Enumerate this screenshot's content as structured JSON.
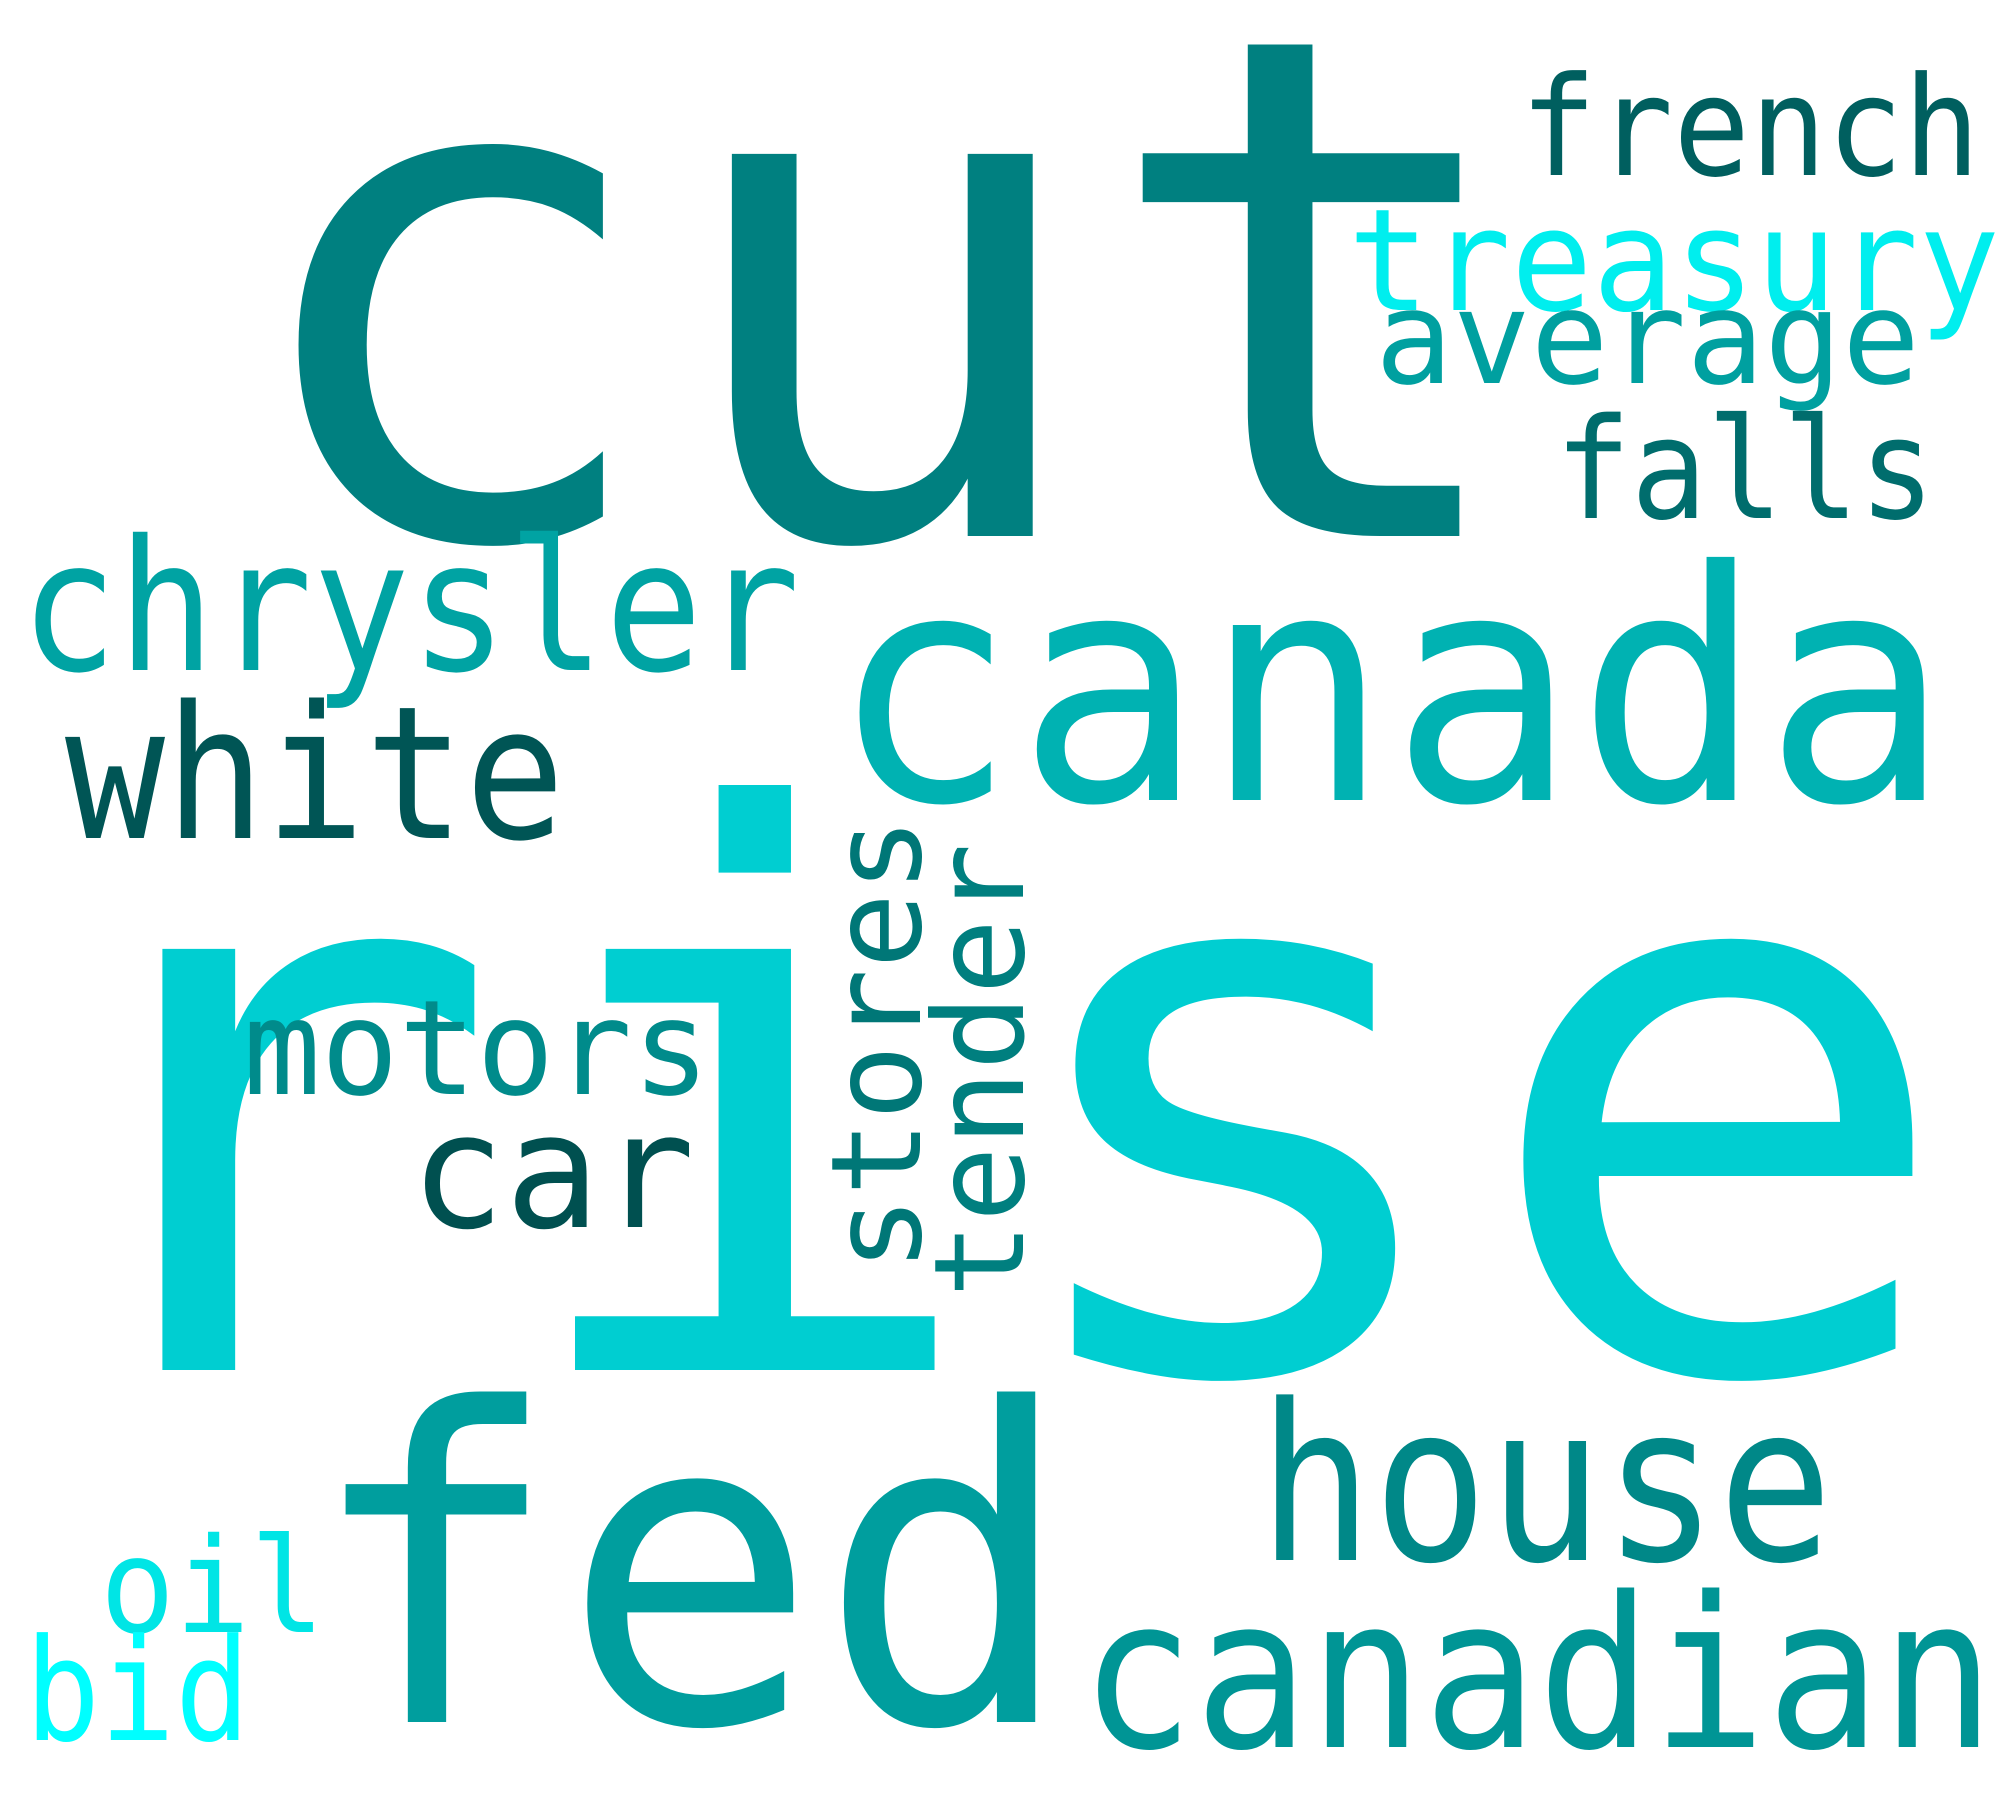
{
  "words": [
    {
      "key": "cut",
      "text": "cut",
      "color": "#008080"
    },
    {
      "key": "rise",
      "text": "rise",
      "color": "#00CED1"
    },
    {
      "key": "canada",
      "text": "canada",
      "color": "#00B2B2"
    },
    {
      "key": "fed",
      "text": "fed",
      "color": "#009E9E"
    },
    {
      "key": "french",
      "text": "french",
      "color": "#005F5F"
    },
    {
      "key": "treasury",
      "text": "treasury",
      "color": "#00EEEE"
    },
    {
      "key": "average",
      "text": "average",
      "color": "#00A0A0"
    },
    {
      "key": "falls",
      "text": "falls",
      "color": "#006D6D"
    },
    {
      "key": "chrysler",
      "text": "chrysler",
      "color": "#00A3A3"
    },
    {
      "key": "white",
      "text": "white",
      "color": "#005555"
    },
    {
      "key": "stores",
      "text": "stores",
      "color": "#007777"
    },
    {
      "key": "tender",
      "text": "tender",
      "color": "#007F7F"
    },
    {
      "key": "motors",
      "text": "motors",
      "color": "#008B8B"
    },
    {
      "key": "car",
      "text": "car",
      "color": "#005050"
    },
    {
      "key": "house",
      "text": "house",
      "color": "#008888"
    },
    {
      "key": "canadian",
      "text": "canadian",
      "color": "#009595"
    },
    {
      "key": "oil",
      "text": "oil",
      "color": "#00E5E5"
    },
    {
      "key": "bid",
      "text": "bid",
      "color": "#00FFFF"
    }
  ]
}
